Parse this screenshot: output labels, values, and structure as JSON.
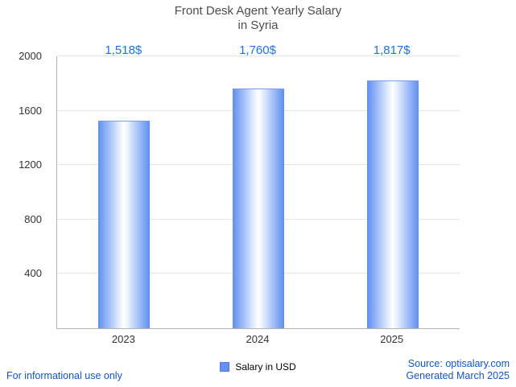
{
  "title": {
    "line1": "Front Desk Agent Yearly Salary",
    "line2": "in Syria"
  },
  "chart_data": {
    "type": "bar",
    "title": "Front Desk Agent Yearly Salary in Syria",
    "categories": [
      "2023",
      "2024",
      "2025"
    ],
    "values": [
      1518,
      1760,
      1817
    ],
    "value_labels": [
      "1,518$",
      "1,760$",
      "1,817$"
    ],
    "ylim": [
      0,
      2000
    ],
    "yticks": [
      400,
      800,
      1200,
      1600,
      2000
    ],
    "xlabel": "",
    "ylabel": "",
    "grid": true,
    "legend": "Salary in USD",
    "legend_position": "bottom"
  },
  "footer": {
    "disclaimer": "For informational use only",
    "source": "Source: optisalary.com",
    "generated": "Generated March 2025"
  },
  "colors": {
    "value_label": "#1a73e8",
    "bar_edge": "#5e8ff2",
    "bar_center": "#ffffff",
    "legend_swatch": "#6691f2",
    "footer_link": "#1155cc",
    "gridline": "#e6e6e6",
    "axis": "#b3b3b3",
    "title_text": "#4d4d4d"
  }
}
